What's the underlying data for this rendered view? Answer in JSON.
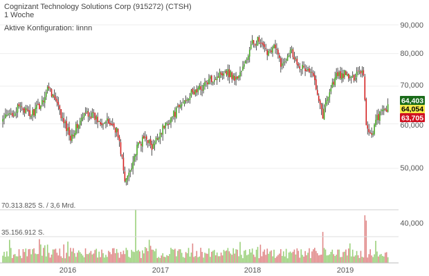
{
  "chart_data": {
    "type": "candlestick-with-volume",
    "title": "Cognizant Technology Solutions Corp (915272) (CTSH)",
    "subtitle": "1 Woche",
    "config_label": "Aktive Konfiguration: linnn",
    "x_tick_labels": [
      "2016",
      "2017",
      "2018",
      "2019"
    ],
    "price_axis": {
      "ticks": [
        50000,
        60000,
        70000,
        80000,
        90000
      ],
      "tick_labels": [
        "50,000",
        "60,000",
        "70,000",
        "80,000",
        "90,000"
      ],
      "scale": "log",
      "range": [
        43000,
        92000
      ]
    },
    "volume_axis": {
      "max": 70313825,
      "max_label": "70.313.825 S. / 3,6 Mrd.",
      "mid": 35156912,
      "mid_label": "35.156.912 S."
    },
    "extra_tick": {
      "value": 40000,
      "label": "40,000"
    },
    "price_tags": [
      {
        "label": "64,403",
        "value": 64403,
        "bg": "#1a6b1a",
        "fg": "#ffffff"
      },
      {
        "label": "64,054",
        "value": 64054,
        "bg": "#f5e94a",
        "fg": "#000000"
      },
      {
        "label": "63,705",
        "value": 63705,
        "bg": "#d01020",
        "fg": "#ffffff"
      }
    ],
    "close_anchors": [
      [
        0,
        61000
      ],
      [
        8,
        63000
      ],
      [
        14,
        64500
      ],
      [
        20,
        62000
      ],
      [
        28,
        65000
      ],
      [
        34,
        70000
      ],
      [
        40,
        65000
      ],
      [
        44,
        61000
      ],
      [
        50,
        57000
      ],
      [
        54,
        59000
      ],
      [
        62,
        63000
      ],
      [
        70,
        61000
      ],
      [
        80,
        60000
      ],
      [
        84,
        58500
      ],
      [
        88,
        52000
      ],
      [
        90,
        47000
      ],
      [
        94,
        50000
      ],
      [
        100,
        55000
      ],
      [
        106,
        57000
      ],
      [
        110,
        54000
      ],
      [
        116,
        58000
      ],
      [
        124,
        61500
      ],
      [
        130,
        64000
      ],
      [
        136,
        67000
      ],
      [
        144,
        69000
      ],
      [
        152,
        71500
      ],
      [
        158,
        73000
      ],
      [
        164,
        75000
      ],
      [
        172,
        72000
      ],
      [
        178,
        76000
      ],
      [
        184,
        83500
      ],
      [
        188,
        84500
      ],
      [
        194,
        80500
      ],
      [
        200,
        82500
      ],
      [
        206,
        76000
      ],
      [
        212,
        82000
      ],
      [
        216,
        78000
      ],
      [
        222,
        75000
      ],
      [
        226,
        74500
      ],
      [
        230,
        72000
      ],
      [
        236,
        62000
      ],
      [
        240,
        68000
      ],
      [
        246,
        73000
      ],
      [
        252,
        73500
      ],
      [
        258,
        72000
      ],
      [
        262,
        75000
      ],
      [
        266,
        74000
      ],
      [
        268,
        59500
      ],
      [
        272,
        57500
      ],
      [
        276,
        61500
      ],
      [
        282,
        63800
      ],
      [
        284,
        64100
      ]
    ],
    "colors": {
      "up": "#43a820",
      "down": "#d42020",
      "vol_up": "#9ad07a",
      "vol_down": "#e08888"
    }
  }
}
